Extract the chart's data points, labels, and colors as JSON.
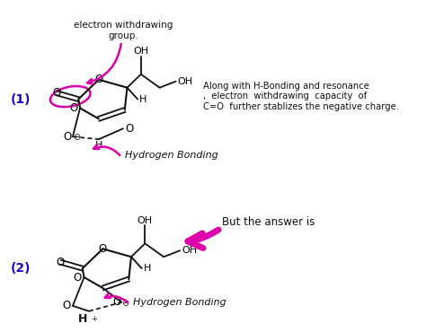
{
  "bg_color": "#ffffff",
  "label1": "(1)",
  "label2": "(2)",
  "label1_color": "#2200cc",
  "label2_color": "#2200cc",
  "magenta": "#dd00aa",
  "black": "#111111",
  "text_right_1": "Along with H-Bonding and resonance\n,  electron  withdrawing  capacity  of\nC=O  further stablizes the negative charge.",
  "text_right_2": "But the answer is",
  "hb_label": "Hydrogen Bonding",
  "ewg_label": "electron withdrawing\ngroup.",
  "fig_width": 4.74,
  "fig_height": 3.7,
  "dpi": 100
}
